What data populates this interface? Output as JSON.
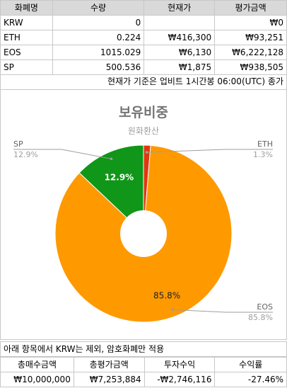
{
  "holdings_table": {
    "headers": [
      "화폐명",
      "수량",
      "현재가",
      "평가금액"
    ],
    "rows": [
      {
        "name": "KRW",
        "qty": "0",
        "price": "",
        "value": "₩0"
      },
      {
        "name": "ETH",
        "qty": "0.224",
        "price": "₩416,300",
        "value": "₩93,251"
      },
      {
        "name": "EOS",
        "qty": "1015.029",
        "price": "₩6,130",
        "value": "₩6,222,128"
      },
      {
        "name": "SP",
        "qty": "500.536",
        "price": "₩1,875",
        "value": "₩938,505"
      }
    ]
  },
  "price_note": "현재가 기준은 업비트 1시간봉 06:00(UTC) 종가",
  "chart_data": {
    "type": "pie",
    "donut": true,
    "title": "보유비중",
    "subtitle": "원화환산",
    "slices": [
      {
        "label": "ETH",
        "value": 93251,
        "percent_label": "1.3%",
        "color": "#dc3912"
      },
      {
        "label": "EOS",
        "value": 6222128,
        "percent_label": "85.8%",
        "color": "#ff9900"
      },
      {
        "label": "SP",
        "value": 938505,
        "percent_label": "12.9%",
        "color": "#109618"
      }
    ],
    "inner_labels": [
      {
        "label": "EOS",
        "text": "85.8%"
      },
      {
        "label": "SP",
        "text": "12.9%"
      }
    ]
  },
  "summary_note": "아래 항목에서 KRW는 제외, 암호화폐만 적용",
  "summary_table": {
    "headers": [
      "총매수금액",
      "총평가금액",
      "투자수익",
      "수익률"
    ],
    "values": [
      "₩10,000,000",
      "₩7,253,884",
      "-₩2,746,116",
      "-27.46%"
    ]
  }
}
